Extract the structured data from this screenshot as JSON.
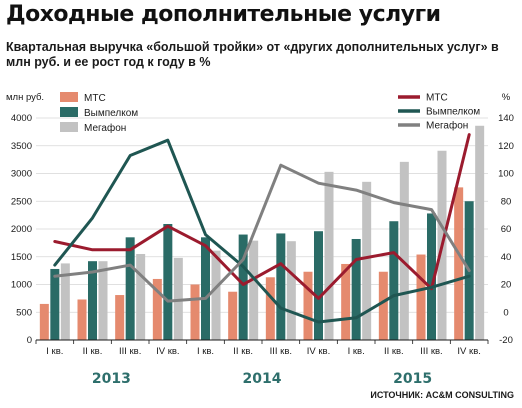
{
  "title": "Доходные дополнительные услуги",
  "subtitle": "Квартальная выручка «большой тройки» от «других дополнительных услуг» в млн руб. и ее рост год к году в %",
  "source": "ИСТОЧНИК: AC&M CONSULTING",
  "colors": {
    "mts_bar": "#e58a6e",
    "vimpelcom_bar": "#2a6b66",
    "megafon_bar": "#c2c2c2",
    "mts_line": "#9b1b2e",
    "vimpelcom_line": "#1f5652",
    "megafon_line": "#808080",
    "year_label": "#2e6f6c"
  },
  "chart_data": {
    "type": "bar",
    "y_left_label": "млн руб.",
    "y_right_label": "%",
    "y_left_ticks": [
      "0",
      "500",
      "1000",
      "1500",
      "2000",
      "2500",
      "3000",
      "3500",
      "4000"
    ],
    "y_right_ticks": [
      "-20",
      "0",
      "20",
      "40",
      "60",
      "80",
      "100",
      "120",
      "140"
    ],
    "ylim_left": [
      0,
      4000
    ],
    "ylim_right": [
      -20,
      140
    ],
    "categories": [
      "I кв.",
      "II кв.",
      "III кв.",
      "IV кв.",
      "I кв.",
      "II кв.",
      "III кв.",
      "IV кв.",
      "I кв.",
      "II кв.",
      "III кв.",
      "IV кв."
    ],
    "years": [
      {
        "label": "2013",
        "from": 0,
        "to": 3
      },
      {
        "label": "2014",
        "from": 4,
        "to": 7
      },
      {
        "label": "2015",
        "from": 8,
        "to": 11
      }
    ],
    "bar_series": [
      {
        "name": "МТС",
        "color_key": "mts_bar",
        "values": [
          650,
          730,
          810,
          1100,
          1000,
          870,
          1130,
          1230,
          1370,
          1230,
          1540,
          2750
        ]
      },
      {
        "name": "Вымпелком",
        "color_key": "vimpelcom_bar",
        "values": [
          1280,
          1420,
          1850,
          2090,
          1850,
          1900,
          1920,
          1960,
          1820,
          2140,
          2280,
          2500
        ]
      },
      {
        "name": "Мегафон",
        "color_key": "megafon_bar",
        "values": [
          1380,
          1420,
          1550,
          1480,
          1610,
          1790,
          1780,
          3030,
          2850,
          3210,
          3410,
          3860
        ]
      }
    ],
    "line_series": [
      {
        "name": "МТС",
        "color_key": "mts_line",
        "values": [
          51,
          45,
          45,
          62,
          48,
          20,
          35,
          10,
          38,
          43,
          17,
          128
        ]
      },
      {
        "name": "Вымпелком",
        "color_key": "vimpelcom_line",
        "values": [
          34,
          68,
          113,
          124,
          56,
          33,
          3,
          -7,
          -4,
          12,
          18,
          26
        ]
      },
      {
        "name": "Мегафон",
        "color_key": "megafon_line",
        "values": [
          26,
          29,
          34,
          8,
          10,
          38,
          106,
          93,
          88,
          79,
          74,
          30
        ]
      }
    ]
  }
}
